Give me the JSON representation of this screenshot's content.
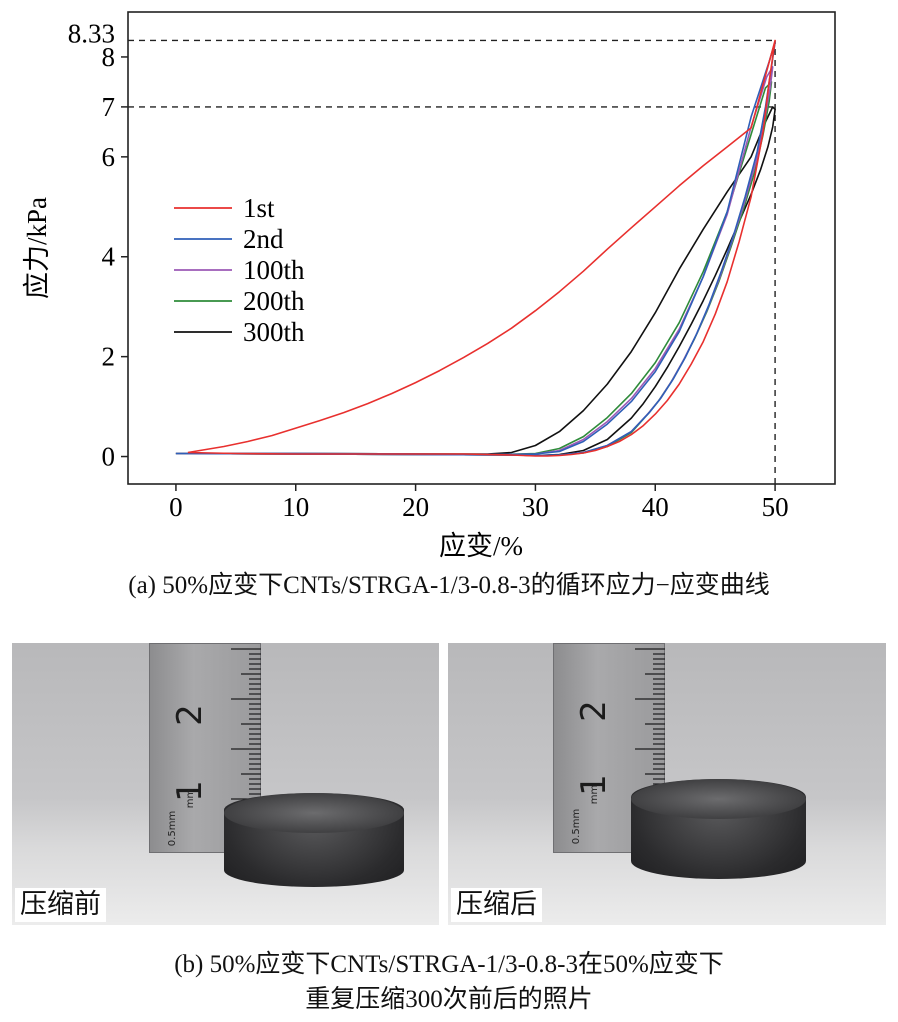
{
  "chart_data": {
    "type": "line",
    "xlabel": "应变/%",
    "ylabel": "应力/kPa",
    "xlim": [
      -4,
      55
    ],
    "ylim": [
      -0.55,
      8.9
    ],
    "xticks": [
      0,
      10,
      20,
      30,
      40,
      50
    ],
    "yticks": [
      0,
      2,
      4,
      6,
      7,
      8
    ],
    "extra_tick_label": {
      "value": 8.33,
      "label": "8.33"
    },
    "reference_lines": [
      {
        "kind": "horizontal",
        "y": 8.33,
        "x_end": 50
      },
      {
        "kind": "horizontal",
        "y": 7,
        "x_end": 50
      },
      {
        "kind": "vertical",
        "x": 50,
        "y_end": 8.33
      }
    ],
    "legend_position": "center-left",
    "grid": false,
    "series": [
      {
        "name": "1st",
        "color": "#e8302e",
        "x": [
          1,
          4,
          6,
          8,
          10,
          12,
          14,
          16,
          18,
          20,
          22,
          24,
          26,
          28,
          30,
          32,
          34,
          36,
          38,
          40,
          42,
          44,
          46,
          48,
          50,
          49.8,
          49.5,
          49,
          48,
          47,
          46,
          45,
          44,
          43,
          42,
          41,
          40,
          39,
          38,
          37,
          36,
          35,
          34,
          33,
          32,
          31,
          30,
          28,
          24,
          20,
          15,
          10,
          5,
          1
        ],
        "y": [
          0.08,
          0.2,
          0.3,
          0.42,
          0.57,
          0.72,
          0.88,
          1.06,
          1.26,
          1.48,
          1.72,
          1.98,
          2.26,
          2.57,
          2.92,
          3.3,
          3.71,
          4.15,
          4.58,
          5.0,
          5.42,
          5.82,
          6.2,
          6.58,
          8.33,
          8.0,
          7.5,
          6.5,
          5.2,
          4.3,
          3.5,
          2.85,
          2.3,
          1.85,
          1.45,
          1.12,
          0.85,
          0.62,
          0.44,
          0.3,
          0.2,
          0.12,
          0.07,
          0.04,
          0.02,
          0.01,
          0.01,
          0.03,
          0.05,
          0.05,
          0.05,
          0.05,
          0.06,
          0.08
        ]
      },
      {
        "name": "2nd",
        "color": "#2f5fb8",
        "x": [
          0,
          10,
          20,
          27,
          30,
          32,
          34,
          36,
          38,
          40,
          42,
          44,
          46,
          48,
          49.5,
          50,
          49.7,
          49.2,
          48.5,
          47.5,
          46.5,
          45.5,
          44.5,
          43.5,
          42.5,
          41.5,
          40.5,
          39.5,
          38,
          36,
          34,
          32,
          30,
          28,
          20,
          10,
          0
        ],
        "y": [
          0.06,
          0.06,
          0.05,
          0.04,
          0.05,
          0.1,
          0.3,
          0.65,
          1.1,
          1.7,
          2.5,
          3.6,
          4.9,
          6.8,
          7.9,
          8.3,
          7.8,
          7.0,
          6.1,
          5.2,
          4.4,
          3.7,
          3.05,
          2.48,
          1.98,
          1.55,
          1.18,
          0.88,
          0.5,
          0.22,
          0.08,
          0.03,
          0.02,
          0.03,
          0.04,
          0.05,
          0.06
        ]
      },
      {
        "name": "100th",
        "color": "#9b59b6",
        "x": [
          0,
          10,
          20,
          27,
          30,
          32,
          34,
          36,
          38,
          40,
          42,
          44,
          46,
          48,
          49.3,
          49.8,
          49.6,
          49.1,
          48.4,
          47.4,
          46.4,
          45.4,
          44.4,
          43.4,
          42.4,
          41.4,
          40.4,
          39.4,
          38,
          36,
          34,
          32,
          30,
          28,
          20,
          10,
          0
        ],
        "y": [
          0.06,
          0.06,
          0.05,
          0.04,
          0.05,
          0.12,
          0.34,
          0.7,
          1.16,
          1.76,
          2.55,
          3.6,
          4.85,
          6.6,
          7.6,
          7.8,
          7.4,
          6.7,
          5.9,
          5.05,
          4.3,
          3.6,
          2.98,
          2.43,
          1.95,
          1.52,
          1.15,
          0.86,
          0.5,
          0.22,
          0.08,
          0.03,
          0.02,
          0.03,
          0.04,
          0.05,
          0.06
        ]
      },
      {
        "name": "200th",
        "color": "#2e8b3a",
        "x": [
          0,
          10,
          20,
          27,
          30,
          32,
          34,
          36,
          38,
          40,
          42,
          44,
          46,
          48,
          49.2,
          49.7,
          49.5,
          49.0,
          48.3,
          47.3,
          46.3,
          45.3,
          44.3,
          43.3,
          42.3,
          41.3,
          40.3,
          39.3,
          38,
          36,
          34,
          32,
          30,
          28,
          20,
          10,
          0
        ],
        "y": [
          0.06,
          0.06,
          0.05,
          0.04,
          0.06,
          0.16,
          0.4,
          0.78,
          1.26,
          1.88,
          2.68,
          3.7,
          4.9,
          6.45,
          7.38,
          7.5,
          7.1,
          6.45,
          5.7,
          4.9,
          4.18,
          3.5,
          2.9,
          2.37,
          1.9,
          1.48,
          1.12,
          0.83,
          0.48,
          0.2,
          0.07,
          0.03,
          0.02,
          0.03,
          0.04,
          0.05,
          0.06
        ]
      },
      {
        "name": "300th",
        "color": "#111111",
        "x": [
          0,
          10,
          20,
          26,
          28,
          30,
          32,
          34,
          36,
          38,
          40,
          42,
          44,
          46,
          48,
          49.2,
          49.8,
          50,
          49.8,
          49.4,
          48.8,
          48,
          47,
          46,
          45,
          44,
          43,
          42,
          41,
          40,
          39,
          38,
          36,
          34,
          32,
          30,
          28,
          20,
          10,
          0
        ],
        "y": [
          0.06,
          0.06,
          0.05,
          0.05,
          0.08,
          0.22,
          0.5,
          0.92,
          1.45,
          2.1,
          2.88,
          3.75,
          4.55,
          5.3,
          6.0,
          6.7,
          7.0,
          6.95,
          6.6,
          6.2,
          5.75,
          5.25,
          4.7,
          4.15,
          3.62,
          3.12,
          2.65,
          2.2,
          1.78,
          1.4,
          1.06,
          0.77,
          0.34,
          0.12,
          0.04,
          0.02,
          0.03,
          0.04,
          0.05,
          0.06
        ]
      }
    ]
  },
  "captions": {
    "a": "(a) 50%应变下CNTs/STRGA-1/3-0.8-3的循环应力−应变曲线",
    "b_line1": "(b) 50%应变下CNTs/STRGA-1/3-0.8-3在50%应变下",
    "b_line2": "重复压缩300次前后的照片"
  },
  "photos": [
    {
      "label": "压缩前",
      "ruler_marks": {
        "major_1": "1",
        "major_2": "2",
        "unit_small": "0.5mm",
        "unit": "mm"
      }
    },
    {
      "label": "压缩后",
      "ruler_marks": {
        "major_1": "1",
        "major_2": "2",
        "unit_small": "0.5mm",
        "unit": "mm"
      }
    }
  ]
}
